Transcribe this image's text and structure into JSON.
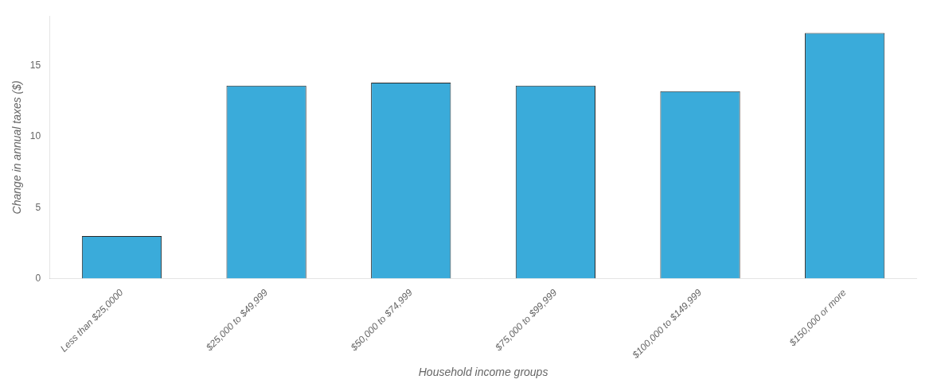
{
  "chart_data": {
    "type": "bar",
    "categories": [
      "Less than $25,0000",
      "$25,000 to $49,999",
      "$50,000 to $74,999",
      "$75,000 to $99,999",
      "$100,000 to $149,999",
      "$150,000 or more"
    ],
    "values": [
      3.0,
      13.6,
      13.8,
      13.6,
      13.2,
      17.3
    ],
    "color": "#3aabda",
    "xlabel": "Household income groups",
    "ylabel": "Change in annual taxes ($)",
    "ylim": [
      0,
      18.5
    ],
    "yticks": [
      0,
      5,
      10,
      15
    ],
    "grid": false
  }
}
